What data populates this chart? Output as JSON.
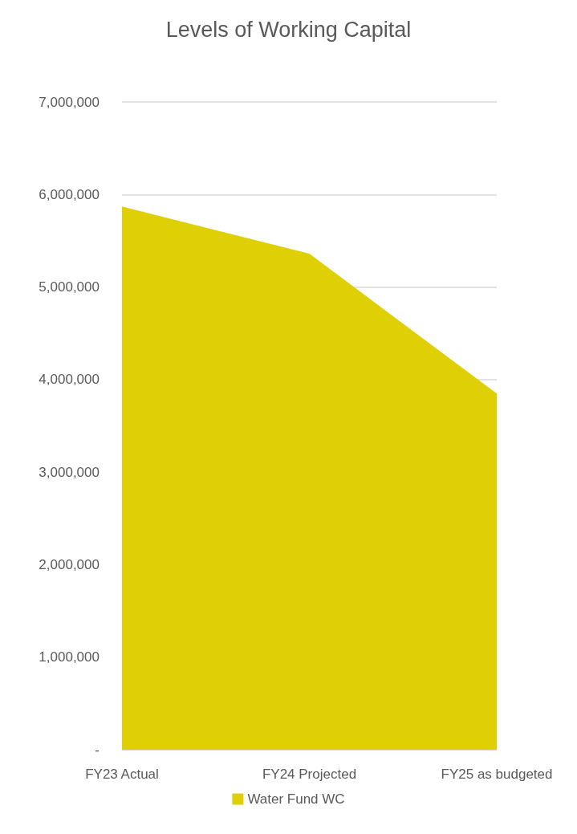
{
  "chart_data": {
    "type": "area",
    "title": "Levels of Working Capital",
    "categories": [
      "FY23 Actual",
      "FY24 Projected",
      "FY25 as budgeted"
    ],
    "series": [
      {
        "name": "Water Fund WC",
        "color": "#dfcf05",
        "values": [
          5870000,
          5360000,
          3850000
        ]
      }
    ],
    "ylim": [
      0,
      7000000
    ],
    "yticks": [
      {
        "value": 0,
        "label": "-"
      },
      {
        "value": 1000000,
        "label": "1,000,000"
      },
      {
        "value": 2000000,
        "label": "2,000,000"
      },
      {
        "value": 3000000,
        "label": "3,000,000"
      },
      {
        "value": 4000000,
        "label": "4,000,000"
      },
      {
        "value": 5000000,
        "label": "5,000,000"
      },
      {
        "value": 6000000,
        "label": "6,000,000"
      },
      {
        "value": 7000000,
        "label": "7,000,000"
      }
    ],
    "grid": "y",
    "legend": "bottom"
  }
}
